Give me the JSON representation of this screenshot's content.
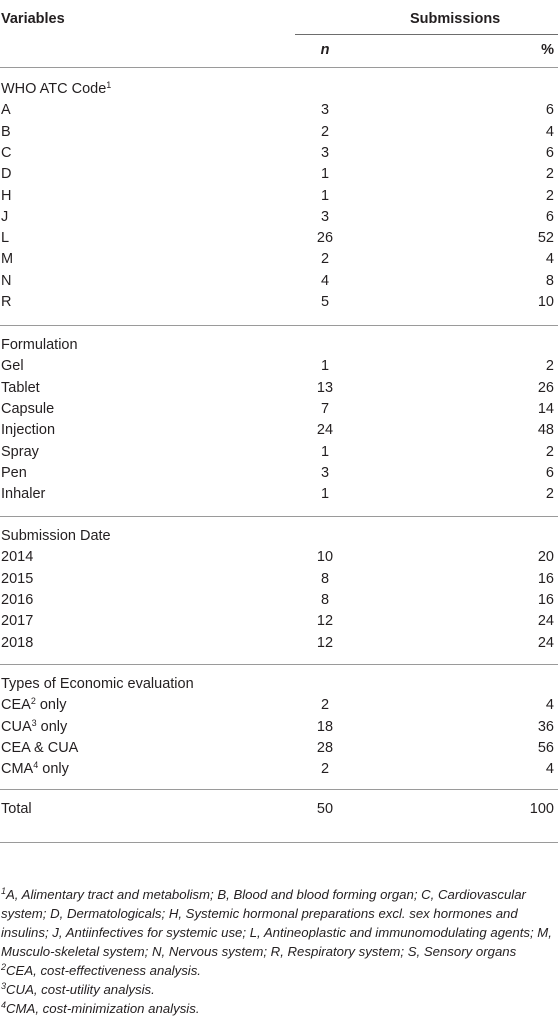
{
  "header": {
    "variables": "Variables",
    "submissions": "Submissions",
    "n": "n",
    "pct": "%"
  },
  "sections": [
    {
      "title": "WHO ATC Code",
      "title_sup": "1",
      "rows": [
        {
          "label": "A",
          "n": "3",
          "pct": "6"
        },
        {
          "label": "B",
          "n": "2",
          "pct": "4"
        },
        {
          "label": "C",
          "n": "3",
          "pct": "6"
        },
        {
          "label": "D",
          "n": "1",
          "pct": "2"
        },
        {
          "label": "H",
          "n": "1",
          "pct": "2"
        },
        {
          "label": "J",
          "n": "3",
          "pct": "6"
        },
        {
          "label": "L",
          "n": "26",
          "pct": "52"
        },
        {
          "label": "M",
          "n": "2",
          "pct": "4"
        },
        {
          "label": "N",
          "n": "4",
          "pct": "8"
        },
        {
          "label": "R",
          "n": "5",
          "pct": "10"
        }
      ]
    },
    {
      "title": "Formulation",
      "rows": [
        {
          "label": "Gel",
          "n": "1",
          "pct": "2"
        },
        {
          "label": "Tablet",
          "n": "13",
          "pct": "26"
        },
        {
          "label": "Capsule",
          "n": "7",
          "pct": "14"
        },
        {
          "label": "Injection",
          "n": "24",
          "pct": "48"
        },
        {
          "label": "Spray",
          "n": "1",
          "pct": "2"
        },
        {
          "label": "Pen",
          "n": "3",
          "pct": "6"
        },
        {
          "label": "Inhaler",
          "n": "1",
          "pct": "2"
        }
      ]
    },
    {
      "title": "Submission Date",
      "rows": [
        {
          "label": "2014",
          "n": "10",
          "pct": "20"
        },
        {
          "label": "2015",
          "n": "8",
          "pct": "16"
        },
        {
          "label": "2016",
          "n": "8",
          "pct": "16"
        },
        {
          "label": "2017",
          "n": "12",
          "pct": "24"
        },
        {
          "label": "2018",
          "n": "12",
          "pct": "24"
        }
      ]
    },
    {
      "title": "Types of Economic evaluation",
      "rows": [
        {
          "label": "CEA",
          "sup": "2",
          "suffix": " only",
          "n": "2",
          "pct": "4"
        },
        {
          "label": "CUA",
          "sup": "3",
          "suffix": " only",
          "n": "18",
          "pct": "36"
        },
        {
          "label": "CEA & CUA",
          "n": "28",
          "pct": "56"
        },
        {
          "label": "CMA",
          "sup": "4",
          "suffix": " only",
          "n": "2",
          "pct": "4"
        }
      ]
    }
  ],
  "total": {
    "label": "Total",
    "n": "50",
    "pct": "100"
  },
  "footnotes": [
    {
      "sup": "1",
      "text": "A, Alimentary tract and metabolism; B, Blood and blood forming organ; C, Cardiovascular system; D, Dermatologicals; H, Systemic hormonal preparations excl. sex hormones and insulins; J, Antiinfectives for systemic use; L, Antineoplastic and immunomodulating agents; M, Musculo-skeletal system; N, Nervous system; R, Respiratory system; S, Sensory organs"
    },
    {
      "sup": "2",
      "text": "CEA, cost-effectiveness analysis."
    },
    {
      "sup": "3",
      "text": "CUA, cost-utility analysis."
    },
    {
      "sup": "4",
      "text": "CMA, cost-minimization analysis."
    }
  ]
}
